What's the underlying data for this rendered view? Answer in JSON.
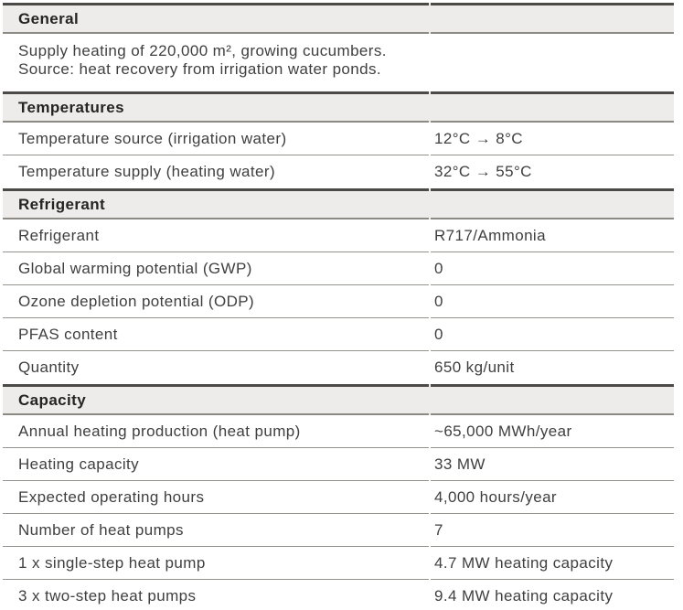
{
  "colors": {
    "header_bg": "#edeceb",
    "border_dark": "#4c4a47",
    "border_light": "#96938e",
    "heading_text": "#242424",
    "body_text": "#3f3f3f"
  },
  "table": {
    "sections": [
      {
        "title": "General",
        "description": [
          "Supply heating of 220,000 m², growing cucumbers.",
          "Source: heat recovery from irrigation water ponds."
        ]
      },
      {
        "title": "Temperatures",
        "rows": [
          {
            "label": "Temperature source (irrigation water)",
            "value": "12°C → 8°C"
          },
          {
            "label": "Temperature supply (heating water)",
            "value": "32°C → 55°C"
          }
        ]
      },
      {
        "title": "Refrigerant",
        "rows": [
          {
            "label": "Refrigerant",
            "value": "R717/Ammonia"
          },
          {
            "label": "Global warming potential (GWP)",
            "value": "0"
          },
          {
            "label": "Ozone depletion potential (ODP)",
            "value": "0"
          },
          {
            "label": "PFAS content",
            "value": "0"
          },
          {
            "label": "Quantity",
            "value": "650 kg/unit"
          }
        ]
      },
      {
        "title": "Capacity",
        "rows": [
          {
            "label": "Annual heating production (heat pump)",
            "value": "~65,000 MWh/year"
          },
          {
            "label": "Heating capacity",
            "value": "33 MW"
          },
          {
            "label": "Expected operating hours",
            "value": "4,000 hours/year"
          },
          {
            "label": "Number of heat pumps",
            "value": "7"
          },
          {
            "label": "1 x single-step heat pump",
            "value": "4.7 MW heating capacity"
          },
          {
            "label": "3 x two-step heat pumps",
            "value": "9.4 MW heating capacity"
          }
        ]
      }
    ]
  }
}
